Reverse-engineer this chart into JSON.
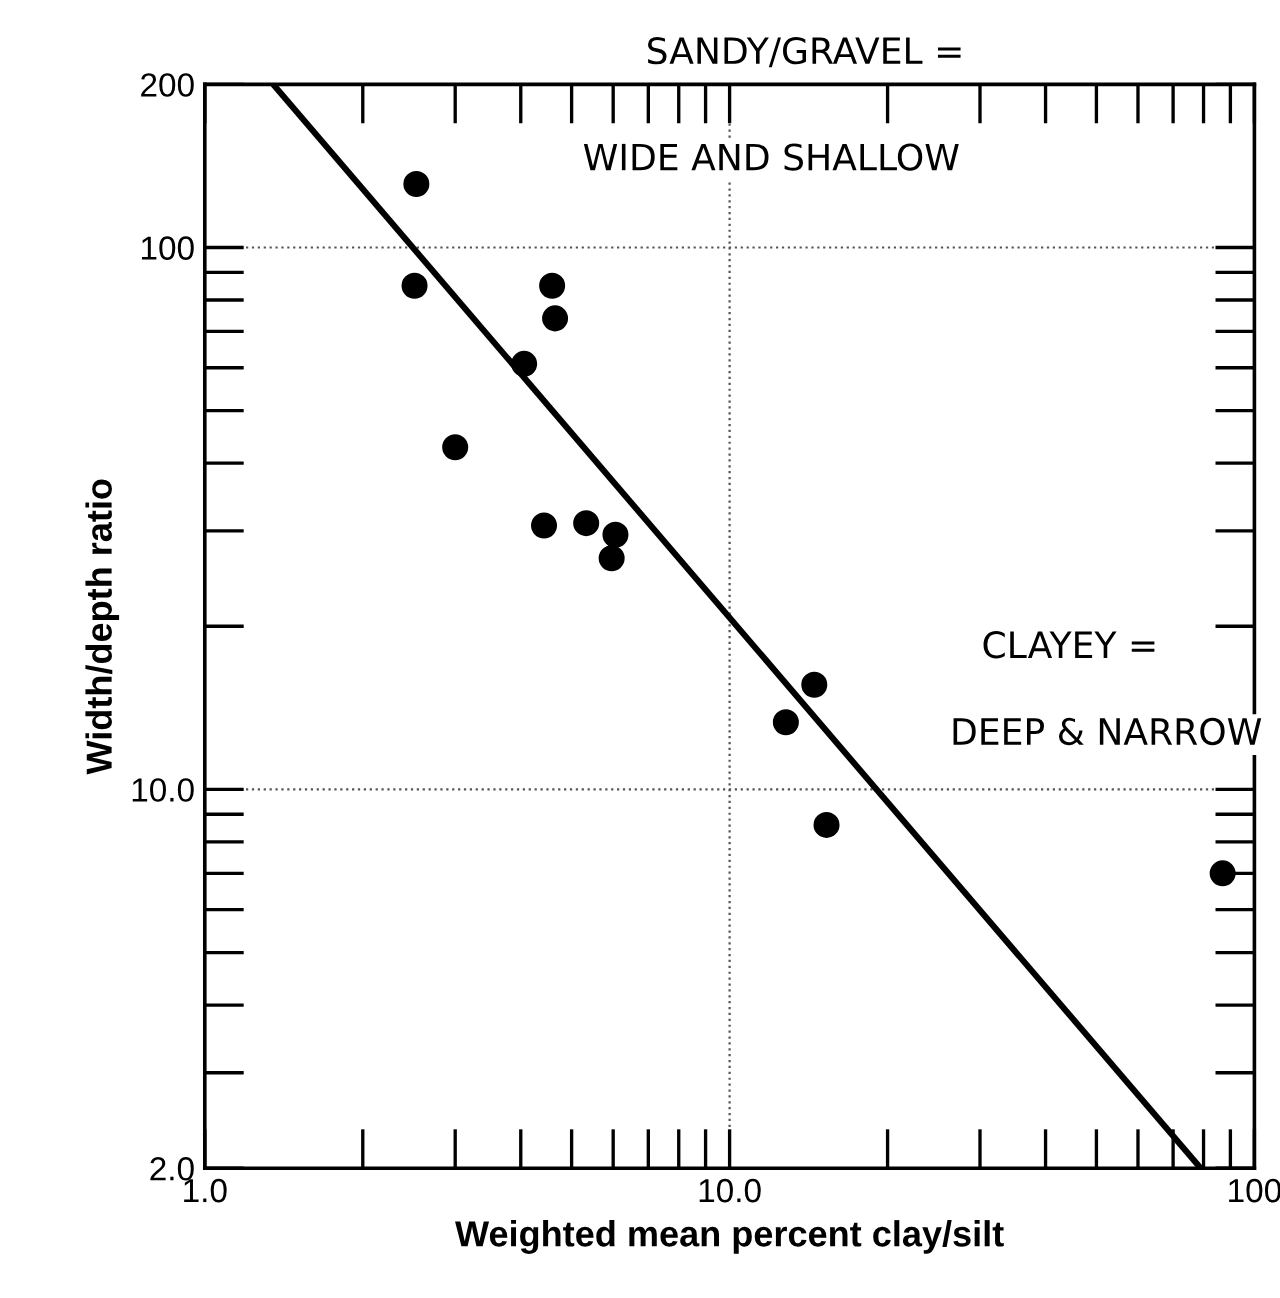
{
  "chart_data": {
    "type": "scatter",
    "xlabel": "Weighted mean percent clay/silt",
    "ylabel": "Width/depth ratio",
    "log": "xy",
    "xlim": [
      1,
      100
    ],
    "ylim": [
      2,
      200
    ],
    "xticks": [
      {
        "value": 1,
        "label": "1.0"
      },
      {
        "value": 10,
        "label": "10.0"
      },
      100
    ],
    "yticks": [
      {
        "value": 2,
        "label": "2.0"
      },
      {
        "value": 10,
        "label": "10.0"
      },
      100,
      200
    ],
    "grid": true,
    "series": [
      {
        "marker": "circle",
        "color": "#000000",
        "x": [
          2.53,
          2.51,
          4.59,
          4.65,
          4.06,
          3.0,
          4.43,
          5.33,
          6.06,
          5.96,
          14.5,
          12.8,
          15.3,
          87
        ],
        "values": [
          131,
          85,
          85,
          74,
          61,
          42.8,
          30.7,
          31,
          29.5,
          26.7,
          15.6,
          13.3,
          8.6,
          7.0
        ]
      },
      {
        "type": "line",
        "color": "#000000",
        "x": [
          1.35,
          79
        ],
        "values": [
          200,
          2
        ]
      }
    ],
    "annotations": [
      "SANDY/GRAVEL =",
      "WIDE AND SHALLOW",
      "CLAYEY =",
      "DEEP & NARROW"
    ]
  }
}
